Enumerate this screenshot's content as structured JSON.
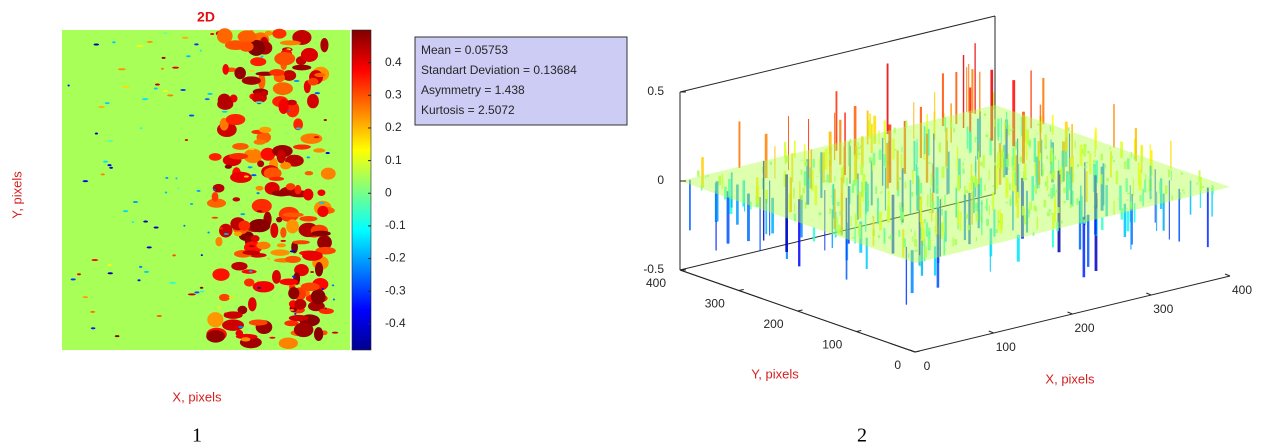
{
  "chart_data": [
    {
      "type": "heatmap",
      "title": "2D",
      "x_label": "X, pixels",
      "y_label": "Y, pixels",
      "colormap": "jet",
      "clim": [
        -0.48,
        0.5
      ],
      "colorbar_ticks": [
        0.4,
        0.3,
        0.2,
        0.1,
        0,
        -0.1,
        -0.2,
        -0.3,
        -0.4
      ],
      "annotation": [
        "Mean = 0.05753",
        "Standart Deviation = 0.13684",
        "Asymmetry = 1.438",
        "Kurtosis = 2.5072"
      ]
    },
    {
      "type": "surface",
      "x_label": "X, pixels",
      "y_label": "Y, pixels",
      "colormap": "jet",
      "xlim": [
        0,
        400
      ],
      "xticks": [
        0,
        100,
        200,
        300,
        400
      ],
      "ylim": [
        0,
        400
      ],
      "yticks": [
        0,
        100,
        200,
        300,
        400
      ],
      "zlim": [
        -0.5,
        0.5
      ],
      "zticks": [
        -0.5,
        0,
        0.5
      ]
    }
  ],
  "panel_labels": [
    "1",
    "2"
  ]
}
